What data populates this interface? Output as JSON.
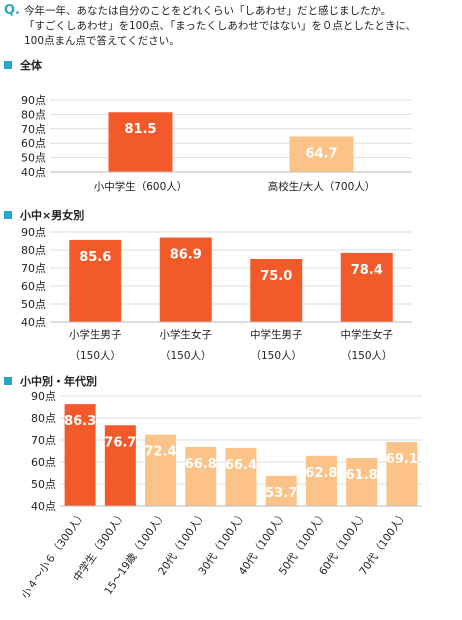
{
  "question": {
    "mark": "Q.",
    "lines": [
      "今年一年、あなたは自分のことをどれくらい「しあわせ」だと感じましたか。",
      "「すごくしあわせ」を100点、「まったくしあわせではない」を０点としたときに、",
      "100点まん点で答えてください。"
    ]
  },
  "colors": {
    "accent": "#2aa6c8",
    "dark_bar": "#f25a2a",
    "light_bar": "#fbc387",
    "grid": "#dddddd"
  },
  "chart_data": [
    {
      "type": "bar",
      "title": "全体",
      "categories": [
        "小中学生（600人）",
        "高校生/大人（700人）"
      ],
      "values": [
        81.5,
        64.7
      ],
      "value_labels": [
        "81.5",
        "64.7"
      ],
      "bar_colors": [
        "dark",
        "light"
      ],
      "ylim": [
        40,
        90
      ],
      "yticks": [
        "40点",
        "50点",
        "60点",
        "70点",
        "80点",
        "90点"
      ],
      "grid": true
    },
    {
      "type": "bar",
      "title": "小中×男女別",
      "categories": [
        [
          "小学生男子",
          "（150人）"
        ],
        [
          "小学生女子",
          "（150人）"
        ],
        [
          "中学生男子",
          "（150人）"
        ],
        [
          "中学生女子",
          "（150人）"
        ]
      ],
      "values": [
        85.6,
        86.9,
        75.0,
        78.4
      ],
      "value_labels": [
        "85.6",
        "86.9",
        "75.0",
        "78.4"
      ],
      "bar_colors": [
        "dark",
        "dark",
        "dark",
        "dark"
      ],
      "ylim": [
        40,
        90
      ],
      "yticks": [
        "40点",
        "50点",
        "60点",
        "70点",
        "80点",
        "90点"
      ],
      "grid": true
    },
    {
      "type": "bar",
      "title": "小中別・年代別",
      "categories": [
        "小４～小６（300人）",
        "中学生（300人）",
        "15～19歳（100人）",
        "20代（100人）",
        "30代（100人）",
        "40代（100人）",
        "50代（100人）",
        "60代（100人）",
        "70代（100人）"
      ],
      "values": [
        86.3,
        76.7,
        72.4,
        66.8,
        66.4,
        53.7,
        62.8,
        61.8,
        69.1
      ],
      "value_labels": [
        "86.3",
        "76.7",
        "72.4",
        "66.8",
        "66.4",
        "53.7",
        "62.8",
        "61.8",
        "69.1"
      ],
      "bar_colors": [
        "dark",
        "dark",
        "light",
        "light",
        "light",
        "light",
        "light",
        "light",
        "light"
      ],
      "ylim": [
        40,
        90
      ],
      "yticks": [
        "40点",
        "50点",
        "60点",
        "70点",
        "80点",
        "90点"
      ],
      "grid": true
    }
  ]
}
